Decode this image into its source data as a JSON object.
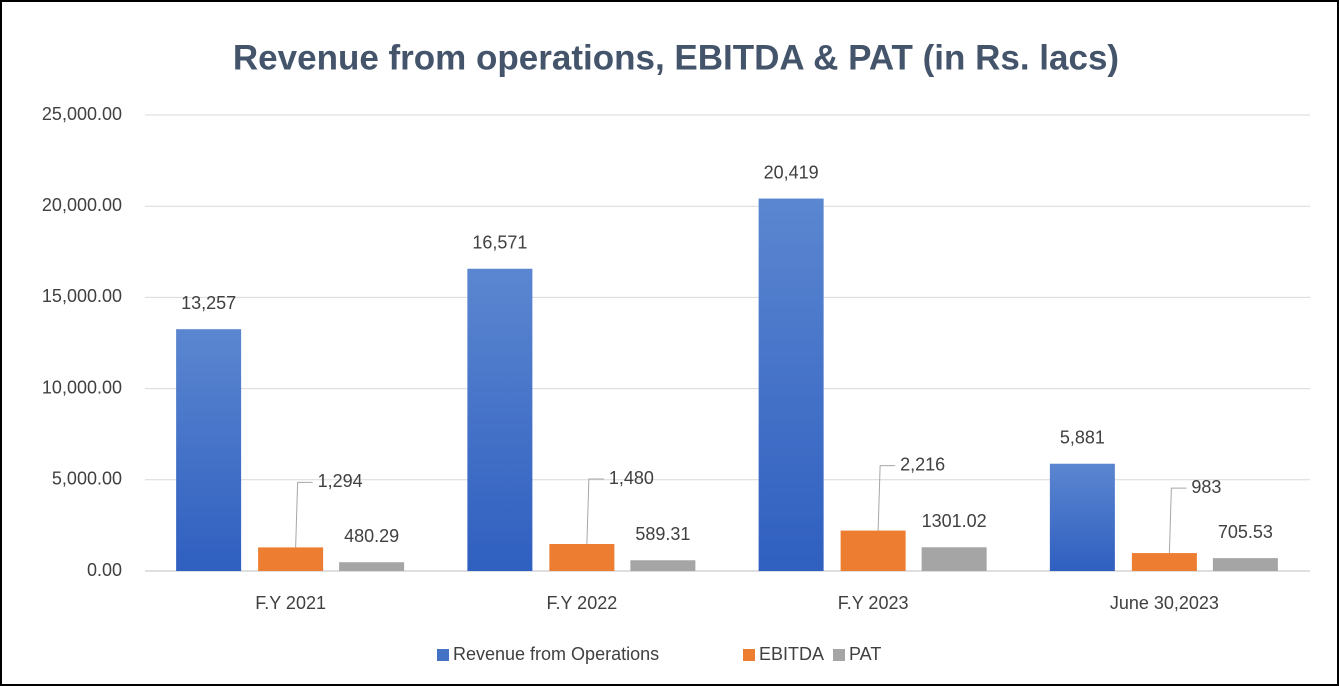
{
  "chart_data": {
    "type": "bar",
    "title": "Revenue from operations, EBITDA & PAT (in Rs. lacs)",
    "categories": [
      "F.Y 2021",
      "F.Y 2022",
      "F.Y 2023",
      "June 30,2023"
    ],
    "series": [
      {
        "name": "Revenue from Operations",
        "color": "#4472c4",
        "values": [
          13257,
          16571,
          20419,
          5881
        ],
        "value_labels": [
          "13,257",
          "16,571",
          "20,419",
          "5,881"
        ]
      },
      {
        "name": "EBITDA",
        "color": "#ed7d31",
        "values": [
          1294,
          1480,
          2216,
          983
        ],
        "value_labels": [
          "1,294",
          "1,480",
          "2,216",
          "983"
        ]
      },
      {
        "name": "PAT",
        "color": "#a5a5a5",
        "values": [
          480.29,
          589.31,
          1301.02,
          705.53
        ]
      }
    ],
    "ylim": [
      0,
      25000
    ],
    "yticks": [
      {
        "value": 0,
        "label": "0.00"
      },
      {
        "value": 5000,
        "label": "5,000.00"
      },
      {
        "value": 10000,
        "label": "10,000.00"
      },
      {
        "value": 15000,
        "label": "15,000.00"
      },
      {
        "value": 20000,
        "label": "20,000.00"
      },
      {
        "value": 25000,
        "label": "25,000.00"
      }
    ],
    "grid": true,
    "legend": "bottom"
  }
}
